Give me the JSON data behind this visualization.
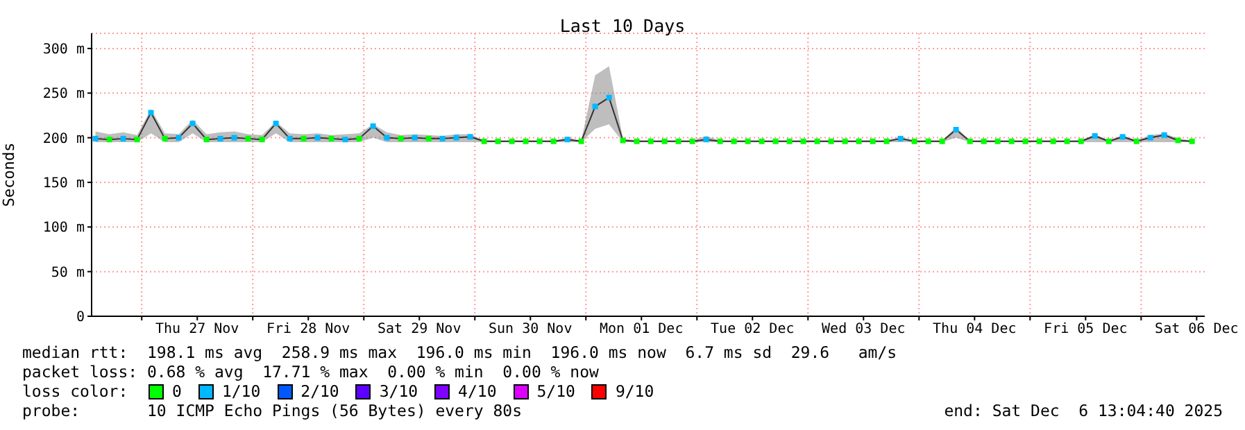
{
  "chart_data": {
    "type": "line",
    "title": "Last 10 Days",
    "ylabel": "Seconds",
    "legend_title": "loss color:",
    "annotations": [
      "median rtt:  198.1 ms avg  258.9 ms max  196.0 ms min  196.0 ms now  6.7 ms sd  29.6   am/s",
      "packet loss: 0.68 % avg  17.71 % max  0.00 % min  0.00 % now",
      "probe:       10 ICMP Echo Pings (56 Bytes) every 80s",
      "end: Sat Dec  6 13:04:40 2025"
    ],
    "x": [
      "2025-11-26T14:00",
      "2025-11-26T17:00",
      "2025-11-26T20:00",
      "2025-11-26T23:00",
      "2025-11-27T02:00",
      "2025-11-27T05:00",
      "2025-11-27T08:00",
      "2025-11-27T11:00",
      "2025-11-27T14:00",
      "2025-11-27T17:00",
      "2025-11-27T20:00",
      "2025-11-27T23:00",
      "2025-11-28T02:00",
      "2025-11-28T05:00",
      "2025-11-28T08:00",
      "2025-11-28T11:00",
      "2025-11-28T14:00",
      "2025-11-28T17:00",
      "2025-11-28T20:00",
      "2025-11-28T23:00",
      "2025-11-29T02:00",
      "2025-11-29T05:00",
      "2025-11-29T08:00",
      "2025-11-29T11:00",
      "2025-11-29T14:00",
      "2025-11-29T17:00",
      "2025-11-29T20:00",
      "2025-11-29T23:00",
      "2025-11-30T02:00",
      "2025-11-30T05:00",
      "2025-11-30T08:00",
      "2025-11-30T11:00",
      "2025-11-30T14:00",
      "2025-11-30T17:00",
      "2025-11-30T20:00",
      "2025-11-30T23:00",
      "2025-12-01T02:00",
      "2025-12-01T05:00",
      "2025-12-01T08:00",
      "2025-12-01T11:00",
      "2025-12-01T14:00",
      "2025-12-01T17:00",
      "2025-12-01T20:00",
      "2025-12-01T23:00",
      "2025-12-02T02:00",
      "2025-12-02T05:00",
      "2025-12-02T08:00",
      "2025-12-02T11:00",
      "2025-12-02T14:00",
      "2025-12-02T17:00",
      "2025-12-02T20:00",
      "2025-12-02T23:00",
      "2025-12-03T02:00",
      "2025-12-03T05:00",
      "2025-12-03T08:00",
      "2025-12-03T11:00",
      "2025-12-03T14:00",
      "2025-12-03T17:00",
      "2025-12-03T20:00",
      "2025-12-03T23:00",
      "2025-12-04T02:00",
      "2025-12-04T05:00",
      "2025-12-04T08:00",
      "2025-12-04T11:00",
      "2025-12-04T14:00",
      "2025-12-04T17:00",
      "2025-12-04T20:00",
      "2025-12-04T23:00",
      "2025-12-05T02:00",
      "2025-12-05T05:00",
      "2025-12-05T08:00",
      "2025-12-05T11:00",
      "2025-12-05T14:00",
      "2025-12-05T17:00",
      "2025-12-05T20:00",
      "2025-12-05T23:00",
      "2025-12-06T02:00",
      "2025-12-06T05:00",
      "2025-12-06T08:00",
      "2025-12-06T11:00"
    ],
    "series": [
      {
        "color": "#333333",
        "values": [
          199,
          198,
          199,
          198,
          228,
          199,
          200,
          216,
          198,
          199,
          200,
          199,
          198,
          216,
          199,
          199,
          200,
          199,
          198,
          199,
          213,
          200,
          199,
          200,
          199,
          199,
          200,
          201,
          196,
          196,
          196,
          196,
          196,
          196,
          198,
          196,
          235,
          245,
          197,
          196,
          196,
          196,
          196,
          196,
          198,
          196,
          196,
          196,
          196,
          196,
          196,
          196,
          196,
          196,
          196,
          196,
          196,
          196,
          199,
          196,
          196,
          196,
          209,
          196,
          196,
          196,
          196,
          196,
          196,
          196,
          196,
          196,
          202,
          196,
          201,
          196,
          200,
          203,
          197,
          196
        ],
        "lower": [
          195,
          195,
          195,
          195,
          205,
          195,
          195,
          205,
          195,
          195,
          195,
          195,
          195,
          205,
          195,
          195,
          195,
          195,
          195,
          195,
          200,
          195,
          195,
          195,
          195,
          195,
          195,
          195,
          195,
          195,
          195,
          195,
          195,
          195,
          195,
          195,
          210,
          215,
          195,
          195,
          195,
          195,
          195,
          195,
          195,
          195,
          195,
          195,
          195,
          195,
          195,
          195,
          195,
          195,
          195,
          195,
          195,
          195,
          195,
          195,
          195,
          195,
          200,
          195,
          195,
          195,
          195,
          195,
          195,
          195,
          195,
          195,
          195,
          195,
          195,
          195,
          195,
          195,
          195,
          195
        ],
        "upper": [
          207,
          204,
          206,
          203,
          232,
          205,
          204,
          220,
          204,
          206,
          207,
          204,
          203,
          218,
          205,
          204,
          205,
          203,
          204,
          205,
          215,
          206,
          203,
          204,
          203,
          202,
          204,
          204,
          197,
          197,
          197,
          197,
          197,
          197,
          200,
          197,
          270,
          280,
          199,
          197,
          197,
          197,
          197,
          197,
          202,
          197,
          197,
          197,
          197,
          197,
          197,
          197,
          197,
          197,
          197,
          197,
          197,
          197,
          201,
          197,
          197,
          197,
          212,
          197,
          197,
          197,
          197,
          197,
          197,
          197,
          197,
          197,
          204,
          197,
          203,
          197,
          203,
          205,
          199,
          197
        ]
      },
      {
        "type": "scatter",
        "name": "0",
        "color": "#00ff00",
        "marker": "square",
        "values": [
          null,
          198,
          null,
          198,
          null,
          199,
          null,
          null,
          198,
          null,
          null,
          199,
          198,
          null,
          null,
          199,
          null,
          199,
          null,
          199,
          null,
          null,
          199,
          null,
          199,
          null,
          null,
          null,
          196,
          196,
          196,
          196,
          196,
          196,
          null,
          196,
          null,
          null,
          197,
          196,
          196,
          196,
          196,
          196,
          null,
          196,
          196,
          196,
          196,
          196,
          196,
          196,
          196,
          196,
          196,
          196,
          196,
          196,
          null,
          196,
          196,
          196,
          null,
          196,
          196,
          196,
          196,
          196,
          196,
          196,
          196,
          196,
          null,
          196,
          null,
          196,
          null,
          null,
          197,
          196
        ]
      },
      {
        "type": "scatter",
        "name": "1/10",
        "color": "#00b8ff",
        "marker": "square",
        "values": [
          199,
          null,
          199,
          null,
          228,
          null,
          200,
          216,
          null,
          199,
          200,
          null,
          null,
          216,
          199,
          null,
          200,
          null,
          198,
          null,
          213,
          200,
          null,
          200,
          null,
          199,
          200,
          201,
          null,
          null,
          null,
          null,
          null,
          null,
          198,
          null,
          235,
          245,
          null,
          null,
          null,
          null,
          null,
          null,
          198,
          null,
          null,
          null,
          null,
          null,
          null,
          null,
          null,
          null,
          null,
          null,
          null,
          null,
          199,
          null,
          null,
          null,
          209,
          null,
          null,
          null,
          null,
          null,
          null,
          null,
          null,
          null,
          202,
          null,
          201,
          null,
          200,
          203,
          null,
          null
        ]
      },
      {
        "type": "scatter",
        "name": "2/10",
        "color": "#0059ff",
        "values": [
          null,
          null,
          null,
          null,
          null,
          null,
          null,
          null,
          null,
          null,
          null,
          null,
          null,
          null,
          null,
          null,
          null,
          null,
          null,
          null,
          null,
          null,
          null,
          null,
          null,
          null,
          null,
          null,
          null,
          null,
          null,
          null,
          null,
          null,
          null,
          null,
          null,
          null,
          null,
          null,
          null,
          null,
          null,
          null,
          null,
          null,
          null,
          null,
          null,
          null,
          null,
          null,
          null,
          null,
          null,
          null,
          null,
          null,
          null,
          null,
          null,
          null,
          null,
          null,
          null,
          null,
          null,
          null,
          null,
          null,
          null,
          null,
          null,
          null,
          null,
          null,
          null,
          null,
          null,
          null
        ]
      },
      {
        "type": "scatter",
        "name": "3/10",
        "color": "#5e00ff",
        "values": [
          null,
          null,
          null,
          null,
          null,
          null,
          null,
          null,
          null,
          null,
          null,
          null,
          null,
          null,
          null,
          null,
          null,
          null,
          null,
          null,
          null,
          null,
          null,
          null,
          null,
          null,
          null,
          null,
          null,
          null,
          null,
          null,
          null,
          null,
          null,
          null,
          null,
          null,
          null,
          null,
          null,
          null,
          null,
          null,
          null,
          null,
          null,
          null,
          null,
          null,
          null,
          null,
          null,
          null,
          null,
          null,
          null,
          null,
          null,
          null,
          null,
          null,
          null,
          null,
          null,
          null,
          null,
          null,
          null,
          null,
          null,
          null,
          null,
          null,
          null,
          null,
          null,
          null,
          null,
          null
        ]
      },
      {
        "type": "scatter",
        "name": "4/10",
        "color": "#7e00ff",
        "values": [
          null,
          null,
          null,
          null,
          null,
          null,
          null,
          null,
          null,
          null,
          null,
          null,
          null,
          null,
          null,
          null,
          null,
          null,
          null,
          null,
          null,
          null,
          null,
          null,
          null,
          null,
          null,
          null,
          null,
          null,
          null,
          null,
          null,
          null,
          null,
          null,
          null,
          null,
          null,
          null,
          null,
          null,
          null,
          null,
          null,
          null,
          null,
          null,
          null,
          null,
          null,
          null,
          null,
          null,
          null,
          null,
          null,
          null,
          null,
          null,
          null,
          null,
          null,
          null,
          null,
          null,
          null,
          null,
          null,
          null,
          null,
          null,
          null,
          null,
          null,
          null,
          null,
          null,
          null,
          null
        ]
      },
      {
        "type": "scatter",
        "name": "5/10",
        "color": "#dd00ff",
        "values": [
          null,
          null,
          null,
          null,
          null,
          null,
          null,
          null,
          null,
          null,
          null,
          null,
          null,
          null,
          null,
          null,
          null,
          null,
          null,
          null,
          null,
          null,
          null,
          null,
          null,
          null,
          null,
          null,
          null,
          null,
          null,
          null,
          null,
          null,
          null,
          null,
          null,
          null,
          null,
          null,
          null,
          null,
          null,
          null,
          null,
          null,
          null,
          null,
          null,
          null,
          null,
          null,
          null,
          null,
          null,
          null,
          null,
          null,
          null,
          null,
          null,
          null,
          null,
          null,
          null,
          null,
          null,
          null,
          null,
          null,
          null,
          null,
          null,
          null,
          null,
          null,
          null,
          null,
          null,
          null
        ]
      },
      {
        "type": "scatter",
        "name": "9/10",
        "color": "#ff0000",
        "values": [
          null,
          null,
          null,
          null,
          null,
          null,
          null,
          null,
          null,
          null,
          null,
          null,
          null,
          null,
          null,
          null,
          null,
          null,
          null,
          null,
          null,
          null,
          null,
          null,
          null,
          null,
          null,
          null,
          null,
          null,
          null,
          null,
          null,
          null,
          null,
          null,
          null,
          null,
          null,
          null,
          null,
          null,
          null,
          null,
          null,
          null,
          null,
          null,
          null,
          null,
          null,
          null,
          null,
          null,
          null,
          null,
          null,
          null,
          null,
          null,
          null,
          null,
          null,
          null,
          null,
          null,
          null,
          null,
          null,
          null,
          null,
          null,
          null,
          null,
          null,
          null,
          null,
          null,
          null,
          null
        ]
      }
    ],
    "xlim": [
      "2025-11-26T13:10",
      "2025-12-06T13:45"
    ],
    "xticks": [
      {
        "value": "2025-11-27T00:00",
        "label": null
      },
      {
        "value": "2025-11-27T12:00",
        "label": "Thu 27 Nov"
      },
      {
        "value": "2025-11-28T00:00",
        "label": null
      },
      {
        "value": "2025-11-28T12:00",
        "label": "Fri 28 Nov"
      },
      {
        "value": "2025-11-29T00:00",
        "label": null
      },
      {
        "value": "2025-11-29T12:00",
        "label": "Sat 29 Nov"
      },
      {
        "value": "2025-11-30T00:00",
        "label": null
      },
      {
        "value": "2025-11-30T12:00",
        "label": "Sun 30 Nov"
      },
      {
        "value": "2025-12-01T00:00",
        "label": null
      },
      {
        "value": "2025-12-01T12:00",
        "label": "Mon 01 Dec"
      },
      {
        "value": "2025-12-02T00:00",
        "label": null
      },
      {
        "value": "2025-12-02T12:00",
        "label": "Tue 02 Dec"
      },
      {
        "value": "2025-12-03T00:00",
        "label": null
      },
      {
        "value": "2025-12-03T12:00",
        "label": "Wed 03 Dec"
      },
      {
        "value": "2025-12-04T00:00",
        "label": null
      },
      {
        "value": "2025-12-04T12:00",
        "label": "Thu 04 Dec"
      },
      {
        "value": "2025-12-05T00:00",
        "label": null
      },
      {
        "value": "2025-12-05T12:00",
        "label": "Fri 05 Dec"
      },
      {
        "value": "2025-12-06T00:00",
        "label": null
      },
      {
        "value": "2025-12-06T12:00",
        "label": "Sat 06 Dec"
      }
    ],
    "ylim": [
      0,
      317
    ],
    "yticks": [
      0,
      {
        "value": 50,
        "label": "50 m"
      },
      {
        "value": 100,
        "label": "100 m"
      },
      {
        "value": 150,
        "label": "150 m"
      },
      {
        "value": 200,
        "label": "200 m"
      },
      {
        "value": 250,
        "label": "250 m"
      },
      {
        "value": 300,
        "label": "300 m"
      }
    ],
    "grid": true,
    "legend": "bottom",
    "line_style": "solid"
  }
}
